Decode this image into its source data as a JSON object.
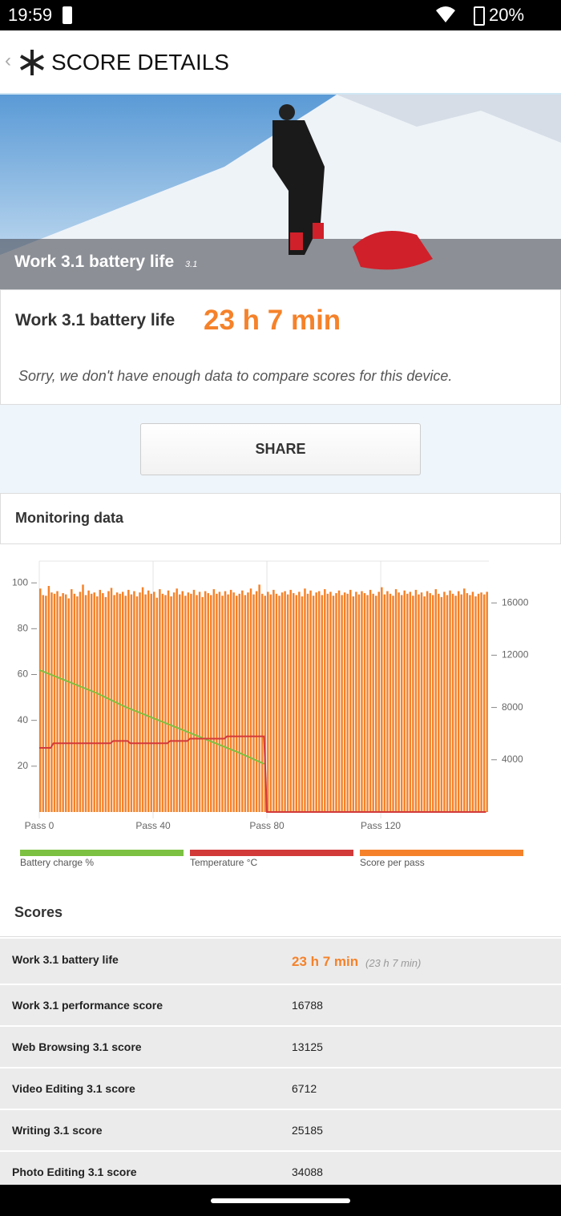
{
  "status_bar": {
    "time": "19:59",
    "battery": "20%"
  },
  "header": {
    "title": "SCORE DETAILS"
  },
  "banner": {
    "title": "Work 3.1 battery life",
    "version": "3.1"
  },
  "result": {
    "label": "Work 3.1 battery life",
    "value": "23 h 7 min"
  },
  "notice": "Sorry, we don't have enough data to compare scores for this device.",
  "share_button": "SHARE",
  "monitoring": {
    "title": "Monitoring data"
  },
  "chart_data": {
    "type": "bar",
    "xlim": [
      0,
      158
    ],
    "xticks": [
      {
        "value": 0,
        "label": "Pass 0"
      },
      {
        "value": 40,
        "label": "Pass 40"
      },
      {
        "value": 80,
        "label": "Pass 80"
      },
      {
        "value": 120,
        "label": "Pass 120"
      }
    ],
    "ylim": [
      0,
      109.5
    ],
    "yticks": [
      20,
      40,
      60,
      80,
      100
    ],
    "y2lim": [
      0,
      19200
    ],
    "y2ticks": [
      4000,
      8000,
      12000,
      16000
    ],
    "grid": true,
    "series": [
      {
        "name": "Battery charge %",
        "color": "#7dc142",
        "type": "line",
        "x": [
          0,
          10,
          20,
          30,
          40,
          50,
          60,
          70,
          79
        ],
        "values": [
          62,
          57,
          52,
          46,
          41,
          36,
          31,
          26,
          21
        ]
      },
      {
        "name": "Temperature °C",
        "color": "#d23a3a",
        "type": "line",
        "x": [
          0,
          4,
          5,
          25,
          26,
          31,
          32,
          45,
          46,
          52,
          53,
          65,
          66,
          79,
          80,
          157
        ],
        "values": [
          28,
          28,
          30,
          30,
          31,
          31,
          30,
          30,
          31,
          31,
          32,
          32,
          33,
          33,
          0,
          0
        ]
      },
      {
        "name": "Score per pass",
        "color": "#f5822a",
        "type": "bar",
        "axis": "y2",
        "x": [
          0,
          1,
          2,
          3,
          4,
          5,
          6,
          7,
          8,
          9,
          10,
          11,
          12,
          13,
          14,
          15,
          16,
          17,
          18,
          19,
          20,
          21,
          22,
          23,
          24,
          25,
          26,
          27,
          28,
          29,
          30,
          31,
          32,
          33,
          34,
          35,
          36,
          37,
          38,
          39,
          40,
          41,
          42,
          43,
          44,
          45,
          46,
          47,
          48,
          49,
          50,
          51,
          52,
          53,
          54,
          55,
          56,
          57,
          58,
          59,
          60,
          61,
          62,
          63,
          64,
          65,
          66,
          67,
          68,
          69,
          70,
          71,
          72,
          73,
          74,
          75,
          76,
          77,
          78,
          79,
          80,
          81,
          82,
          83,
          84,
          85,
          86,
          87,
          88,
          89,
          90,
          91,
          92,
          93,
          94,
          95,
          96,
          97,
          98,
          99,
          100,
          101,
          102,
          103,
          104,
          105,
          106,
          107,
          108,
          109,
          110,
          111,
          112,
          113,
          114,
          115,
          116,
          117,
          118,
          119,
          120,
          121,
          122,
          123,
          124,
          125,
          126,
          127,
          128,
          129,
          130,
          131,
          132,
          133,
          134,
          135,
          136,
          137,
          138,
          139,
          140,
          141,
          142,
          143,
          144,
          145,
          146,
          147,
          148,
          149,
          150,
          151,
          152,
          153,
          154,
          155,
          156,
          157
        ],
        "values": [
          17100,
          16600,
          16550,
          17300,
          16800,
          16700,
          16900,
          16500,
          16750,
          16650,
          16350,
          17050,
          16700,
          16500,
          16850,
          17400,
          16600,
          16950,
          16700,
          16800,
          16500,
          17000,
          16750,
          16450,
          16900,
          17150,
          16600,
          16800,
          16700,
          16850,
          16550,
          17000,
          16650,
          16900,
          16500,
          16800,
          17200,
          16650,
          16950,
          16700,
          16850,
          16400,
          17050,
          16700,
          16600,
          16950,
          16500,
          16800,
          17100,
          16650,
          16900,
          16550,
          16800,
          16700,
          17000,
          16600,
          16850,
          16450,
          16900,
          16750,
          16600,
          17050,
          16700,
          16850,
          16550,
          16900,
          16650,
          17000,
          16800,
          16550,
          16700,
          16950,
          16600,
          16800,
          17100,
          16650,
          16900,
          17400,
          16700,
          16550,
          16850,
          16650,
          17000,
          16700,
          16550,
          16800,
          16900,
          16650,
          17000,
          16750,
          16600,
          16850,
          16500,
          17100,
          16700,
          16950,
          16550,
          16800,
          16900,
          16600,
          17050,
          16700,
          16850,
          16550,
          16750,
          16950,
          16600,
          16800,
          16700,
          17000,
          16500,
          16850,
          16650,
          16900,
          16750,
          16600,
          17000,
          16700,
          16550,
          16850,
          17200,
          16650,
          16900,
          16700,
          16550,
          17050,
          16800,
          16600,
          16950,
          16700,
          16850,
          16550,
          17000,
          16650,
          16800,
          16500,
          16900,
          16750,
          16600,
          17050,
          16700,
          16450,
          16850,
          16600,
          16950,
          16700,
          16550,
          16900,
          16650,
          17100,
          16750,
          16600,
          16850,
          16500,
          16700,
          16800,
          16650,
          16850
        ]
      }
    ]
  },
  "scores": {
    "title": "Scores",
    "rows": [
      [
        "Work 3.1 battery life",
        "23 h 7 min",
        "(23 h 7 min)"
      ],
      [
        "Work 3.1 performance score",
        16788
      ],
      [
        "Web Browsing 3.1 score",
        13125
      ],
      [
        "Video Editing 3.1 score",
        6712
      ],
      [
        "Writing 3.1 score",
        25185
      ],
      [
        "Photo Editing 3.1 score",
        34088
      ]
    ]
  }
}
